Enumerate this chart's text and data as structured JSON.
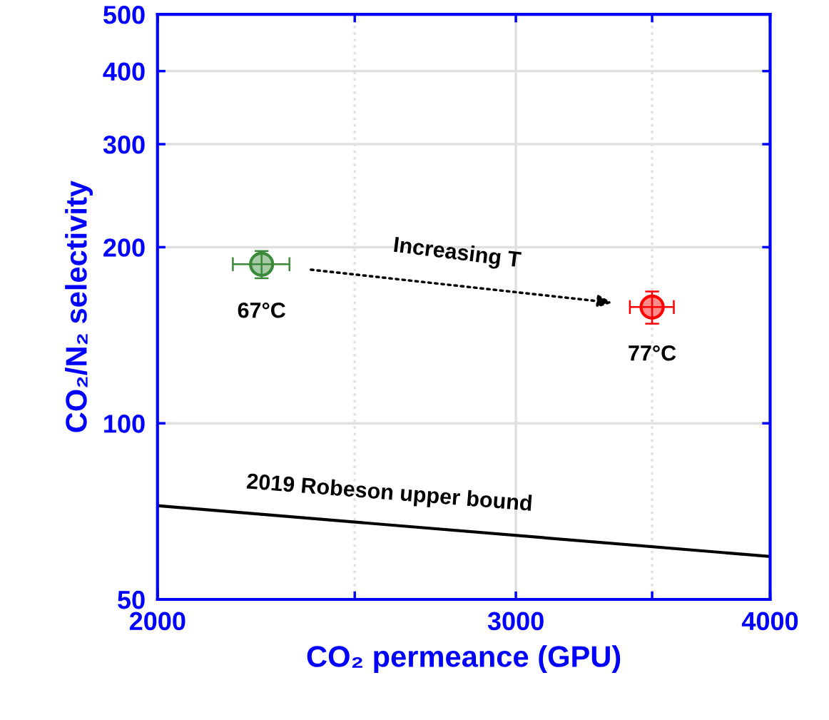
{
  "chart_data": {
    "type": "scatter",
    "xlabel": "CO₂ permeance (GPU)",
    "ylabel": "CO₂/N₂ selectivity",
    "log": "xy",
    "grid": true,
    "marker": "circle",
    "xlim": [
      2000,
      4000
    ],
    "xticks": [
      2000,
      {
        "value": 2500,
        "label": null
      },
      3000,
      {
        "value": 3500,
        "label": null
      },
      4000
    ],
    "ylim": [
      50,
      500
    ],
    "yticks": [
      50,
      100,
      200,
      300,
      400,
      500
    ],
    "series": [
      {
        "x": [
          2250
        ],
        "values": [
          187
        ],
        "errors": [
          10
        ],
        "xerrors": [
          72
        ],
        "color": "#3a8a3a"
      },
      {
        "x": [
          3500
        ],
        "values": [
          158
        ],
        "errors": [
          10
        ],
        "xerrors": [
          87
        ],
        "color": "#ff0000"
      },
      {
        "type": "line",
        "x": [
          2000,
          4000
        ],
        "values": [
          72.3,
          59.2
        ],
        "color": "#000000",
        "marker": "none",
        "line_style": "solid"
      }
    ],
    "annotations": [
      {
        "text": "67°C",
        "x": 2250,
        "y": 187
      },
      {
        "text": "77°C",
        "x": 3500,
        "y": 158
      },
      "Increasing T",
      {
        "text": "2019 Robeson upper bound",
        "x": 2600,
        "y": 68
      }
    ]
  }
}
